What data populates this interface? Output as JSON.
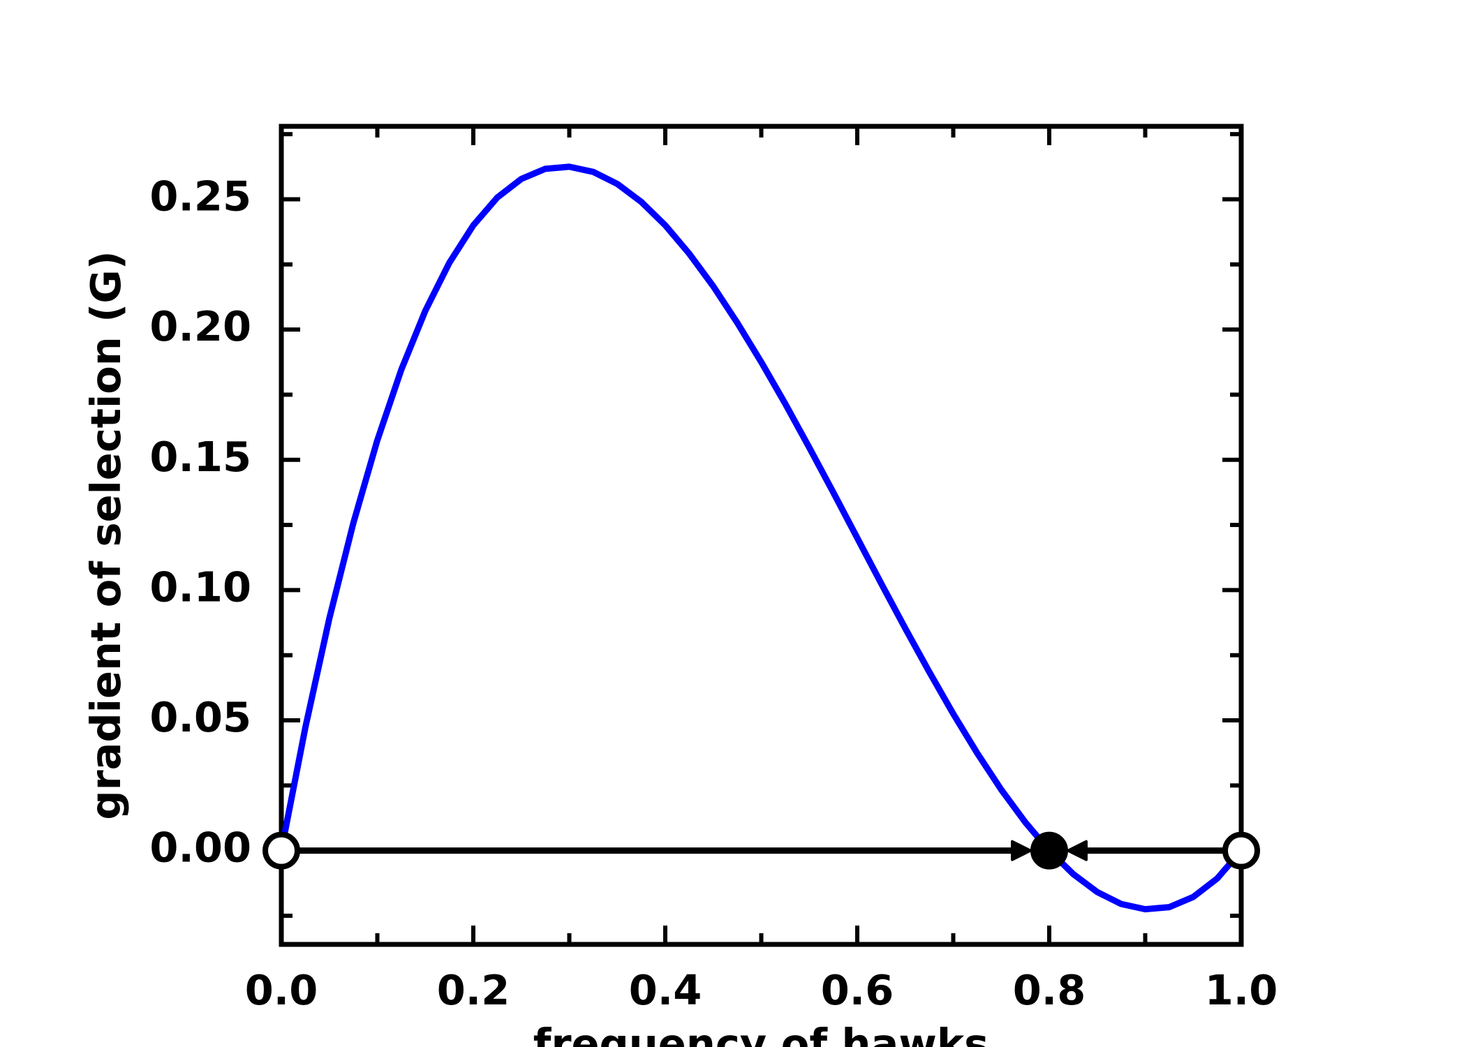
{
  "chart_data": {
    "type": "line",
    "xlabel": "frequency of hawks",
    "ylabel": "gradient of selection (G)",
    "x": [
      0,
      0.025,
      0.05,
      0.075,
      0.1,
      0.125,
      0.15,
      0.175,
      0.2,
      0.225,
      0.25,
      0.275,
      0.3,
      0.325,
      0.35,
      0.375,
      0.4,
      0.425,
      0.45,
      0.475,
      0.5,
      0.525,
      0.55,
      0.575,
      0.6,
      0.625,
      0.65,
      0.675,
      0.7,
      0.725,
      0.75,
      0.775,
      0.8,
      0.825,
      0.85,
      0.875,
      0.9,
      0.925,
      0.95,
      0.975,
      1.0
    ],
    "series": [
      {
        "color": "#0000ff",
        "values": [
          0,
          0.0472,
          0.0891,
          0.1257,
          0.1575,
          0.1846,
          0.2072,
          0.2256,
          0.24,
          0.2507,
          0.2578,
          0.2617,
          0.2625,
          0.2605,
          0.2559,
          0.249,
          0.24,
          0.2291,
          0.2166,
          0.2026,
          0.1875,
          0.1715,
          0.1547,
          0.1375,
          0.12,
          0.1025,
          0.0853,
          0.0686,
          0.0525,
          0.0374,
          0.0234,
          0.0109,
          0,
          -0.009,
          -0.0159,
          -0.0205,
          -0.0225,
          -0.0217,
          -0.0178,
          -0.0107,
          0
        ]
      }
    ],
    "equilibria": {
      "x": [
        0,
        0.8,
        1.0
      ],
      "y": [
        0,
        0,
        0
      ],
      "stable": [
        false,
        true,
        false
      ]
    },
    "xlim": [
      0,
      1.0
    ],
    "ylim": [
      -0.036,
      0.278
    ],
    "xticks": [
      {
        "value": 0,
        "label": "0.0"
      },
      0.2,
      0.4,
      0.6,
      0.8,
      {
        "value": 1.0,
        "label": "1.0"
      }
    ],
    "xminor": [
      0.1,
      0.3,
      0.5,
      0.7,
      0.9
    ],
    "yticks": [
      {
        "value": 0,
        "label": "0.00"
      },
      0.05,
      {
        "value": 0.1,
        "label": "0.10"
      },
      0.15,
      {
        "value": 0.2,
        "label": "0.20"
      },
      0.25
    ],
    "yminor": [
      -0.025,
      0.025,
      0.075,
      0.125,
      0.175,
      0.225,
      0.275
    ]
  }
}
